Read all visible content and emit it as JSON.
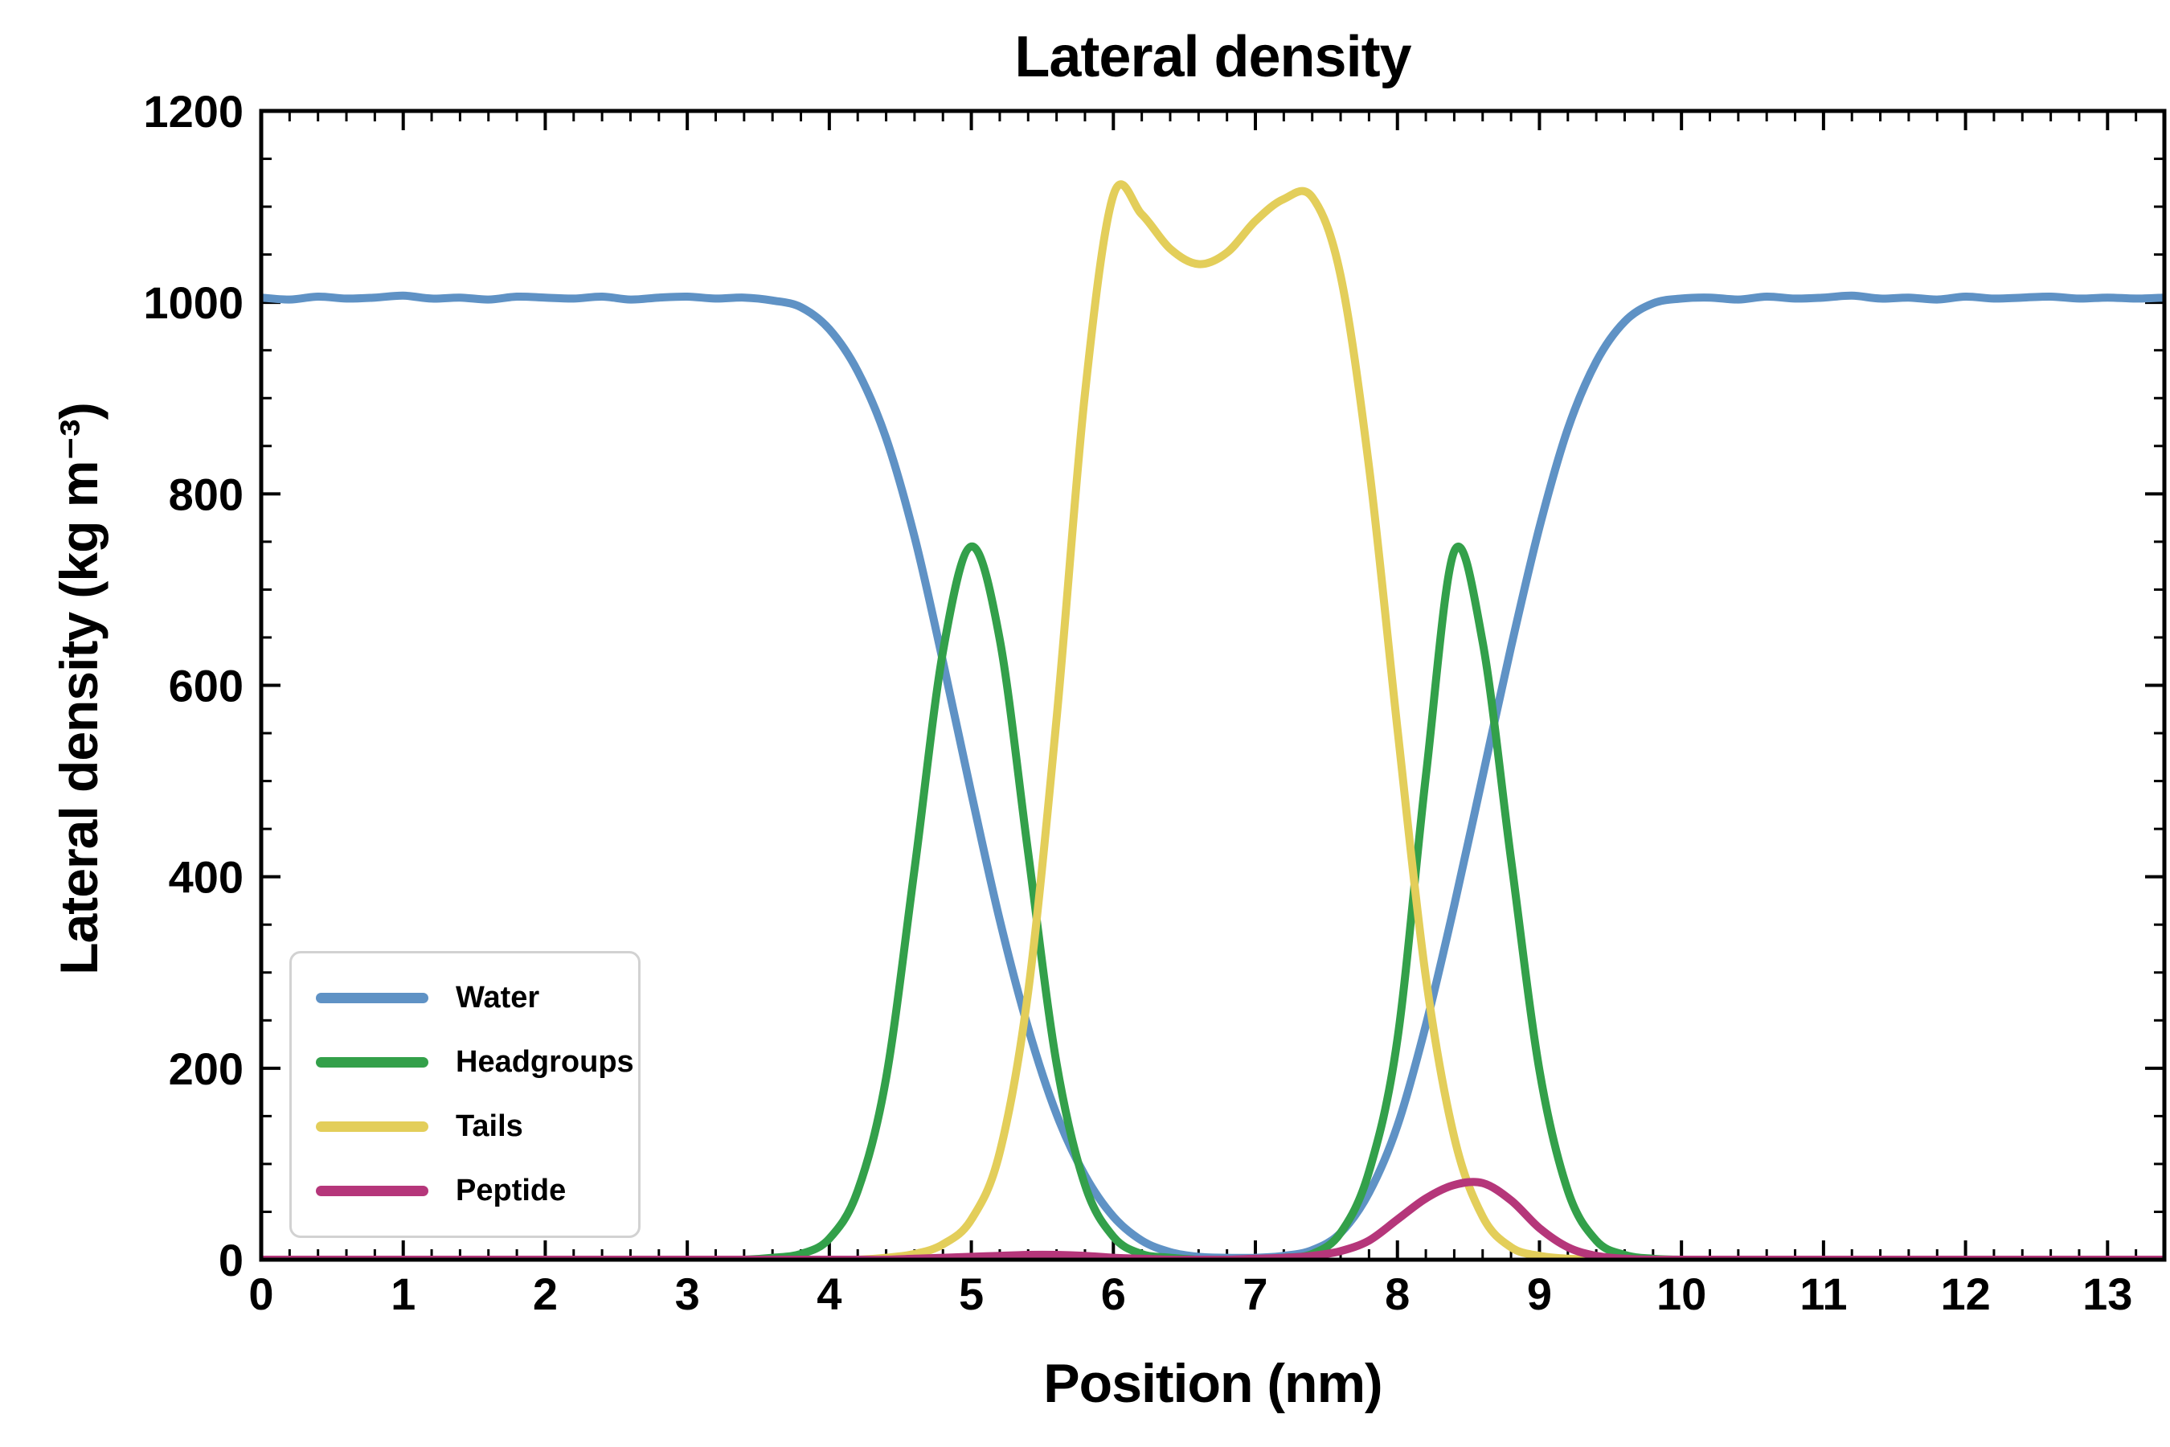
{
  "title": "Lateral density",
  "axes": {
    "xlabel": "Position (nm)",
    "ylabel": "Lateral density (kg m⁻³)",
    "xlim": [
      0,
      13.4
    ],
    "ylim": [
      0,
      1200
    ],
    "xticks": [
      0,
      1,
      2,
      3,
      4,
      5,
      6,
      7,
      8,
      9,
      10,
      11,
      12,
      13
    ],
    "yticks": [
      0,
      200,
      400,
      600,
      800,
      1000,
      1200
    ],
    "x_minor_step": 0.2,
    "y_minor_step": 50
  },
  "chart_data": {
    "type": "line",
    "title": "Lateral density",
    "xlabel": "Position (nm)",
    "ylabel": "Lateral density (kg m⁻³)",
    "xlim": [
      0,
      13.4
    ],
    "ylim": [
      0,
      1200
    ],
    "grid": false,
    "legend_position": "lower left",
    "x": [
      0.0,
      0.2,
      0.4,
      0.6,
      0.8,
      1.0,
      1.2,
      1.4,
      1.6,
      1.8,
      2.0,
      2.2,
      2.4,
      2.6,
      2.8,
      3.0,
      3.2,
      3.4,
      3.6,
      3.8,
      4.0,
      4.2,
      4.4,
      4.6,
      4.8,
      5.0,
      5.2,
      5.4,
      5.6,
      5.8,
      6.0,
      6.2,
      6.4,
      6.6,
      6.8,
      7.0,
      7.2,
      7.4,
      7.6,
      7.8,
      8.0,
      8.2,
      8.4,
      8.6,
      8.8,
      9.0,
      9.2,
      9.4,
      9.6,
      9.8,
      10.0,
      10.2,
      10.4,
      10.6,
      10.8,
      11.0,
      11.2,
      11.4,
      11.6,
      11.8,
      12.0,
      12.2,
      12.4,
      12.6,
      12.8,
      13.0,
      13.2,
      13.4
    ],
    "series": [
      {
        "name": "Water",
        "color": "#5F92C5",
        "values": [
          1005,
          1003,
          1006,
          1004,
          1005,
          1007,
          1004,
          1005,
          1003,
          1006,
          1005,
          1004,
          1006,
          1003,
          1005,
          1006,
          1004,
          1005,
          1002,
          995,
          972,
          928,
          858,
          755,
          625,
          487,
          355,
          242,
          152,
          88,
          45,
          20,
          8,
          3,
          2,
          2,
          4,
          10,
          28,
          70,
          140,
          245,
          370,
          505,
          640,
          765,
          868,
          938,
          980,
          999,
          1004,
          1005,
          1003,
          1006,
          1004,
          1005,
          1007,
          1004,
          1005,
          1003,
          1006,
          1004,
          1005,
          1006,
          1004,
          1005,
          1004,
          1005
        ]
      },
      {
        "name": "Headgroups",
        "color": "#33A04A",
        "values": [
          0,
          0,
          0,
          0,
          0,
          0,
          0,
          0,
          0,
          0,
          0,
          0,
          0,
          0,
          0,
          0,
          0,
          0,
          2,
          6,
          22,
          72,
          190,
          408,
          635,
          745,
          648,
          425,
          205,
          78,
          24,
          6,
          2,
          0,
          0,
          0,
          2,
          6,
          28,
          92,
          230,
          505,
          740,
          645,
          418,
          198,
          72,
          20,
          5,
          1,
          0,
          0,
          0,
          0,
          0,
          0,
          0,
          0,
          0,
          0,
          0,
          0,
          0,
          0,
          0,
          0,
          0,
          0
        ]
      },
      {
        "name": "Tails",
        "color": "#E3CE5A",
        "values": [
          0,
          0,
          0,
          0,
          0,
          0,
          0,
          0,
          0,
          0,
          0,
          0,
          0,
          0,
          0,
          0,
          0,
          0,
          0,
          0,
          0,
          0,
          2,
          6,
          16,
          42,
          112,
          280,
          565,
          905,
          1112,
          1092,
          1056,
          1040,
          1052,
          1085,
          1108,
          1110,
          1028,
          828,
          555,
          295,
          128,
          45,
          13,
          4,
          1,
          0,
          0,
          0,
          0,
          0,
          0,
          0,
          0,
          0,
          0,
          0,
          0,
          0,
          0,
          0,
          0,
          0,
          0,
          0,
          0,
          0
        ]
      },
      {
        "name": "Peptide",
        "color": "#B5367A",
        "values": [
          0,
          0,
          0,
          0,
          0,
          0,
          0,
          0,
          0,
          0,
          0,
          0,
          0,
          0,
          0,
          0,
          0,
          0,
          0,
          0,
          0,
          0,
          0,
          1,
          2,
          3,
          4,
          5,
          5,
          4,
          2,
          1,
          0,
          0,
          0,
          1,
          2,
          4,
          9,
          20,
          42,
          64,
          78,
          80,
          62,
          33,
          13,
          4,
          1,
          0,
          0,
          0,
          0,
          0,
          0,
          0,
          0,
          0,
          0,
          0,
          0,
          0,
          0,
          0,
          0,
          0,
          0,
          0
        ]
      }
    ]
  }
}
